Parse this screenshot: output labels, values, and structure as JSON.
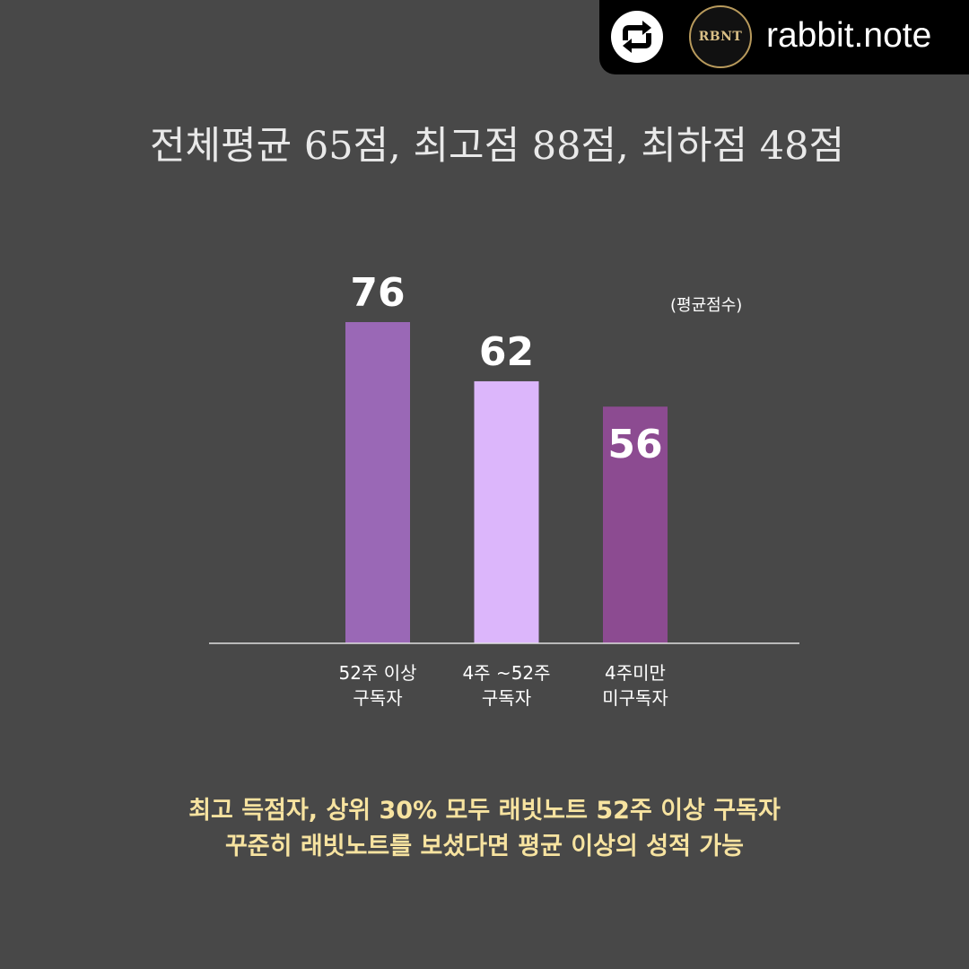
{
  "repost": {
    "icon": "repost-icon",
    "avatar_text": "RBNT",
    "handle": "rabbit.note"
  },
  "headline": "전체평균 65점, 최고점 88점, 최하점 48점",
  "chart_data": {
    "type": "bar",
    "unit_label": "(평균점수)",
    "categories": [
      [
        "52주 이상",
        "구독자"
      ],
      [
        "4주 ~52주",
        "구독자"
      ],
      [
        "4주미만",
        "미구독자"
      ]
    ],
    "values": [
      76,
      62,
      56
    ],
    "value_labels": [
      "76",
      "62",
      "56"
    ],
    "colors": [
      "#9a68b6",
      "#dcb6fb",
      "#8c4b91"
    ],
    "label_colors": [
      "#ffffff",
      "#ffffff",
      "#ffffff"
    ],
    "ylim": [
      0,
      76
    ],
    "grid": false,
    "xlabel": "",
    "ylabel": ""
  },
  "footer": {
    "line1": "최고 득점자, 상위 30% 모두  래빗노트 52주 이상 구독자",
    "line2": "꾸준히 래빗노트를 보셨다면 평균 이상의 성적 가능"
  },
  "colors": {
    "background": "#484848",
    "footer_text": "#f7e3a0",
    "axis": "#e0e0e0"
  }
}
